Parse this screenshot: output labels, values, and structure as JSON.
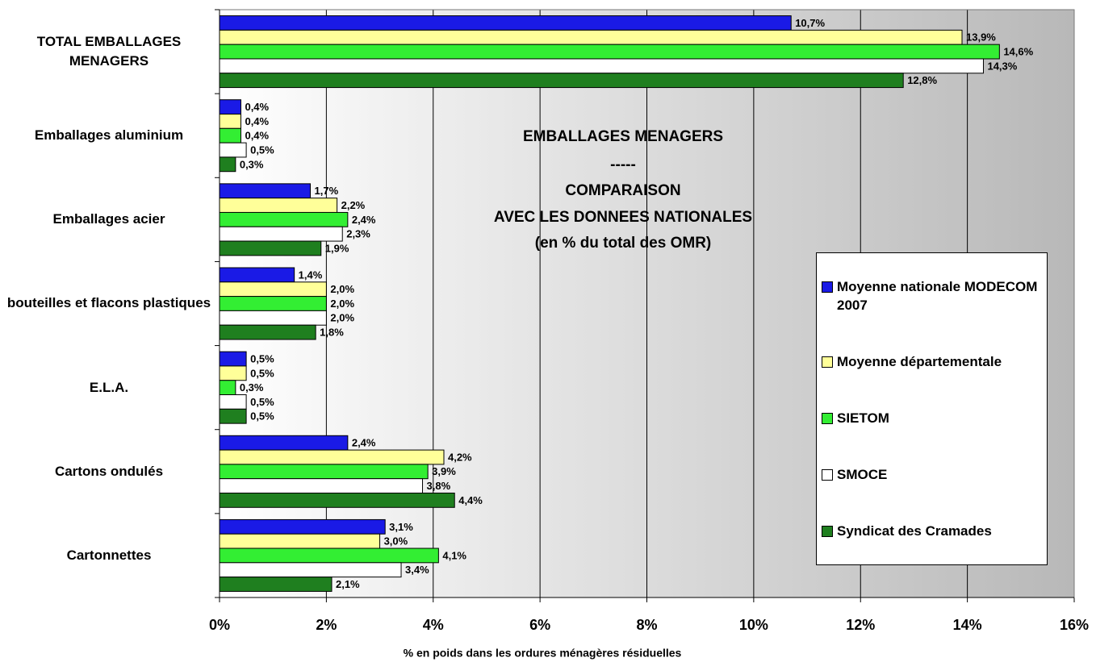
{
  "chart_data": {
    "type": "hbar",
    "title": [
      "EMBALLAGES MENAGERS",
      "-----",
      "COMPARAISON",
      "AVEC LES DONNEES NATIONALES",
      "(en % du total des OMR)"
    ],
    "xlabel": "% en poids dans les ordures ménagères résiduelles",
    "categories": [
      "TOTAL EMBALLAGES MENAGERS",
      "Emballages aluminium",
      "Emballages acier",
      "bouteilles et flacons plastiques",
      "E.L.A.",
      "Cartons ondulés",
      "Cartonnettes"
    ],
    "series": [
      {
        "name": "Moyenne nationale MODECOM 2007",
        "color": "#1a1ae6",
        "values": [
          10.7,
          0.4,
          1.7,
          1.4,
          0.5,
          2.4,
          3.1
        ],
        "value_labels": [
          "10,7%",
          "0,4%",
          "1,7%",
          "1,4%",
          "0,5%",
          "2,4%",
          "3,1%"
        ]
      },
      {
        "name": "Moyenne départementale",
        "color": "#ffff99",
        "values": [
          13.9,
          0.4,
          2.2,
          2.0,
          0.5,
          4.2,
          3.0
        ],
        "value_labels": [
          "13,9%",
          "0,4%",
          "2,2%",
          "2,0%",
          "0,5%",
          "4,2%",
          "3,0%"
        ]
      },
      {
        "name": "SIETOM",
        "color": "#33ee33",
        "values": [
          14.6,
          0.4,
          2.4,
          2.0,
          0.3,
          3.9,
          4.1
        ],
        "value_labels": [
          "14,6%",
          "0,4%",
          "2,4%",
          "2,0%",
          "0,3%",
          "3,9%",
          "4,1%"
        ]
      },
      {
        "name": "SMOCE",
        "color": "#ffffff",
        "values": [
          14.3,
          0.5,
          2.3,
          2.0,
          0.5,
          3.8,
          3.4
        ],
        "value_labels": [
          "14,3%",
          "0,5%",
          "2,3%",
          "2,0%",
          "0,5%",
          "3,8%",
          "3,4%"
        ]
      },
      {
        "name": "Syndicat des Cramades",
        "color": "#1f7f1f",
        "values": [
          12.8,
          0.3,
          1.9,
          1.8,
          0.5,
          4.4,
          2.1
        ],
        "value_labels": [
          "12,8%",
          "0,3%",
          "1,9%",
          "1,8%",
          "0,5%",
          "4,4%",
          "2,1%"
        ]
      }
    ],
    "xlim": [
      0,
      16
    ],
    "xticks": [
      {
        "value": 0,
        "label": "0%"
      },
      {
        "value": 2,
        "label": "2%"
      },
      {
        "value": 4,
        "label": "4%"
      },
      {
        "value": 6,
        "label": "6%"
      },
      {
        "value": 8,
        "label": "8%"
      },
      {
        "value": 10,
        "label": "10%"
      },
      {
        "value": 12,
        "label": "12%"
      },
      {
        "value": 14,
        "label": "14%"
      },
      {
        "value": 16,
        "label": "16%"
      }
    ],
    "grid": true
  }
}
